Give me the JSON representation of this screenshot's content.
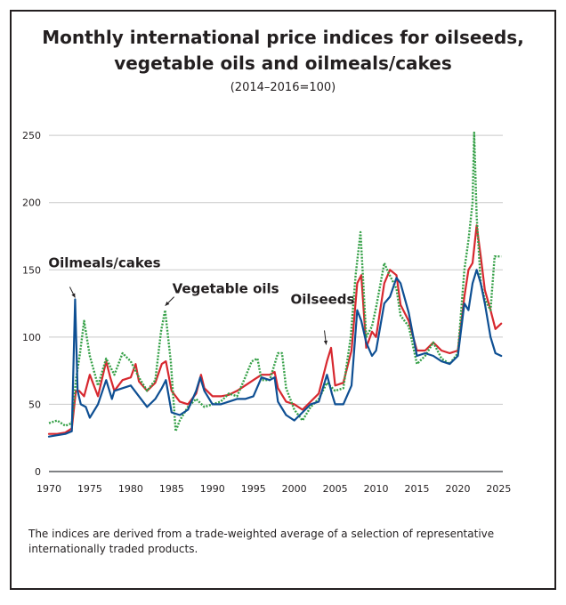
{
  "page": {
    "title_line1": "Monthly international price indices for oilseeds,",
    "title_line2": "vegetable oils and oilmeals/cakes",
    "subtitle": "(2014–2016=100)",
    "footnote": "The indices are derived from a trade-weighted average of a selection of representative internationally traded products."
  },
  "chart_data": {
    "type": "line",
    "title": "Monthly international price indices for oilseeds, vegetable oils and oilmeals/cakes",
    "subtitle": "(2014–2016=100)",
    "xlabel": "",
    "ylabel": "",
    "xlim": [
      1970,
      2025.5
    ],
    "ylim": [
      0,
      260
    ],
    "grid": true,
    "xticks": [
      1970,
      1975,
      1980,
      1985,
      1990,
      1995,
      2000,
      2005,
      2010,
      2015,
      2020,
      2025
    ],
    "yticks": [
      0,
      50,
      100,
      150,
      200,
      250
    ],
    "annotations": [
      {
        "text": "Oilmeals/cakes",
        "x": 1973.2,
        "y": 128
      },
      {
        "text": "Vegetable oils",
        "x": 1984.0,
        "y": 122
      },
      {
        "text": "Oilseeds",
        "x": 2003.9,
        "y": 93
      }
    ],
    "series": [
      {
        "name": "Oilseeds",
        "color": "#d7282f",
        "style": "solid",
        "x": [
          1970,
          1971,
          1972,
          1972.8,
          1973.3,
          1973.7,
          1974.3,
          1975,
          1976,
          1977,
          1977.5,
          1978,
          1979,
          1980,
          1980.6,
          1981,
          1982,
          1983,
          1983.8,
          1984.3,
          1985,
          1986,
          1987,
          1988,
          1988.6,
          1989,
          1990,
          1991,
          1992,
          1993,
          1994,
          1995,
          1996,
          1997,
          1997.6,
          1998,
          1999,
          2000,
          2001,
          2002,
          2003,
          2004,
          2004.5,
          2005,
          2006,
          2007,
          2007.7,
          2008.2,
          2008.8,
          2009.5,
          2010,
          2011,
          2011.7,
          2012.5,
          2013,
          2014,
          2015,
          2016,
          2017,
          2018,
          2019,
          2020,
          2020.8,
          2021.3,
          2021.8,
          2022.3,
          2022.8,
          2023.3,
          2024,
          2024.6,
          2025.3
        ],
        "values": [
          28,
          28,
          29,
          32,
          60,
          60,
          56,
          72,
          56,
          82,
          70,
          60,
          68,
          70,
          80,
          67,
          60,
          66,
          80,
          82,
          60,
          52,
          50,
          58,
          72,
          62,
          56,
          56,
          57,
          60,
          64,
          68,
          72,
          72,
          74,
          62,
          52,
          50,
          46,
          52,
          58,
          82,
          92,
          64,
          66,
          90,
          140,
          146,
          92,
          104,
          100,
          140,
          150,
          146,
          124,
          112,
          90,
          90,
          96,
          90,
          88,
          90,
          130,
          150,
          155,
          183,
          160,
          135,
          120,
          106,
          110
        ]
      },
      {
        "name": "Vegetable oils",
        "color": "#35a047",
        "style": "dotted",
        "x": [
          1970,
          1971,
          1972,
          1972.8,
          1973.3,
          1973.8,
          1974.3,
          1975,
          1976,
          1977,
          1978,
          1979,
          1980,
          1981,
          1982,
          1983,
          1983.7,
          1984.2,
          1984.9,
          1985.5,
          1986,
          1987,
          1988,
          1989,
          1990,
          1991,
          1992,
          1993,
          1994,
          1994.8,
          1995.5,
          1996,
          1997,
          1998,
          1998.5,
          1999,
          2000,
          2001,
          2002,
          2003,
          2004,
          2005,
          2006,
          2006.9,
          2007.5,
          2008.1,
          2008.8,
          2009.5,
          2010,
          2011,
          2011.5,
          2012.5,
          2013,
          2014,
          2015,
          2016,
          2017,
          2018,
          2019,
          2020,
          2020.8,
          2021.3,
          2021.8,
          2022.0,
          2022.3,
          2022.8,
          2023.3,
          2024,
          2024.5,
          2025.3
        ],
        "values": [
          36,
          38,
          34,
          36,
          68,
          88,
          112,
          86,
          64,
          84,
          72,
          88,
          82,
          70,
          60,
          68,
          104,
          120,
          82,
          30,
          38,
          48,
          54,
          48,
          50,
          52,
          58,
          56,
          70,
          82,
          84,
          68,
          68,
          88,
          88,
          62,
          46,
          38,
          48,
          54,
          66,
          60,
          62,
          100,
          146,
          178,
          100,
          108,
          122,
          155,
          148,
          136,
          116,
          108,
          80,
          86,
          96,
          84,
          80,
          88,
          150,
          172,
          200,
          252,
          190,
          140,
          128,
          120,
          160,
          160
        ]
      },
      {
        "name": "Oilmeals/cakes",
        "color": "#0e4f93",
        "style": "solid",
        "x": [
          1970,
          1971,
          1972,
          1972.8,
          1973.2,
          1973.5,
          1973.9,
          1974.5,
          1975,
          1976,
          1977,
          1977.7,
          1978,
          1979,
          1980,
          1981,
          1982,
          1983,
          1983.8,
          1984.3,
          1985,
          1986,
          1987,
          1988,
          1988.5,
          1989,
          1990,
          1991,
          1992,
          1993,
          1994,
          1995,
          1996,
          1997,
          1997.6,
          1998,
          1999,
          2000,
          2001,
          2002,
          2003,
          2004,
          2004.6,
          2005,
          2006,
          2007,
          2007.7,
          2008.2,
          2008.8,
          2009.5,
          2010,
          2011,
          2011.7,
          2012.5,
          2013,
          2014,
          2015,
          2016,
          2017,
          2018,
          2019,
          2020,
          2020.8,
          2021.3,
          2021.8,
          2022.3,
          2022.8,
          2023.3,
          2024,
          2024.6,
          2025.3
        ],
        "values": [
          26,
          27,
          28,
          30,
          128,
          60,
          50,
          48,
          40,
          50,
          68,
          54,
          60,
          62,
          64,
          56,
          48,
          54,
          62,
          68,
          44,
          42,
          46,
          60,
          70,
          60,
          50,
          50,
          52,
          54,
          54,
          56,
          70,
          68,
          70,
          52,
          42,
          38,
          44,
          50,
          52,
          72,
          58,
          50,
          50,
          64,
          120,
          112,
          96,
          86,
          90,
          125,
          130,
          144,
          140,
          118,
          86,
          88,
          86,
          82,
          80,
          86,
          125,
          120,
          140,
          150,
          140,
          125,
          100,
          88,
          86
        ]
      }
    ]
  }
}
